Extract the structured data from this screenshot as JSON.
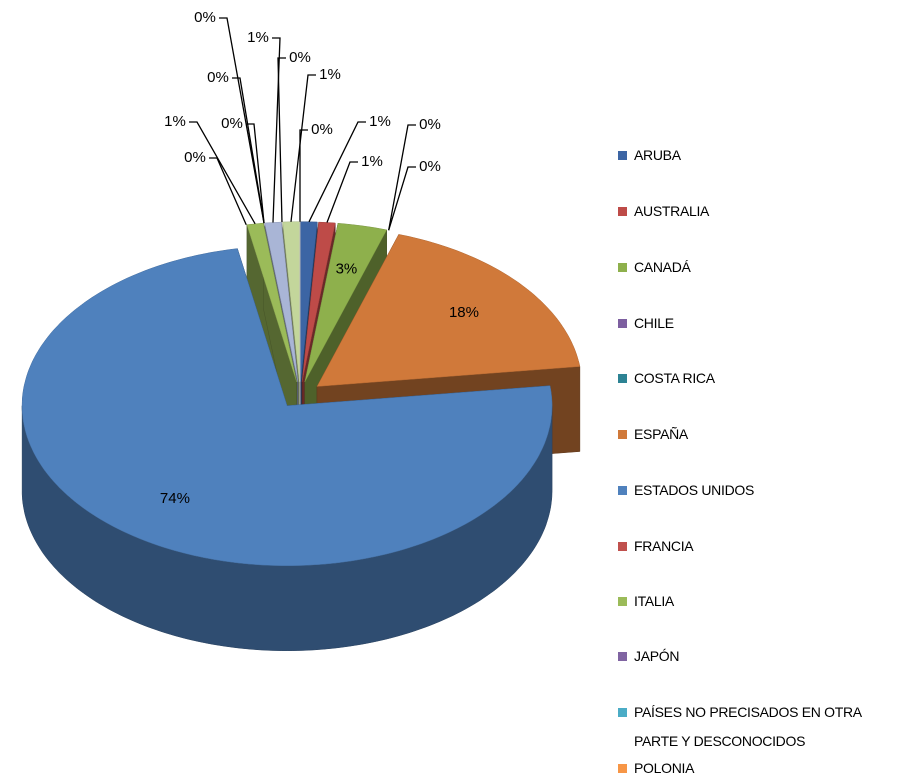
{
  "chart_data": {
    "type": "pie3d",
    "categories": [
      "ARUBA",
      "AUSTRALIA",
      "CANADÁ",
      "CHILE",
      "COSTA RICA",
      "ESPAÑA",
      "ESTADOS UNIDOS",
      "FRANCIA",
      "ITALIA",
      "JAPÓN",
      "PAÍSES NO PRECISADOS EN OTRA PARTE Y DESCONOCIDOS",
      "POLONIA",
      null,
      null,
      null,
      null
    ],
    "values": [
      1,
      1,
      3,
      0,
      0,
      18,
      74,
      0,
      1,
      0,
      0,
      0,
      1,
      0,
      1,
      0
    ],
    "value_labels": [
      "1%",
      "1%",
      "3%",
      "0%",
      "0%",
      "18%",
      "74%",
      "0%",
      "1%",
      "0%",
      "0%",
      "0%",
      "1%",
      "0%",
      "1%",
      "0%"
    ],
    "colors": [
      "#3c65a4",
      "#be4b48",
      "#8eb04c",
      "#7d5fa0",
      "#2d8394",
      "#d0793a",
      "#4f81bd",
      "#c0504d",
      "#9bbb59",
      "#8064a2",
      "#4bacc6",
      "#f79646",
      "#a9b5d6",
      "#d99694",
      "#c3d69b",
      "#b3a2c7"
    ]
  }
}
